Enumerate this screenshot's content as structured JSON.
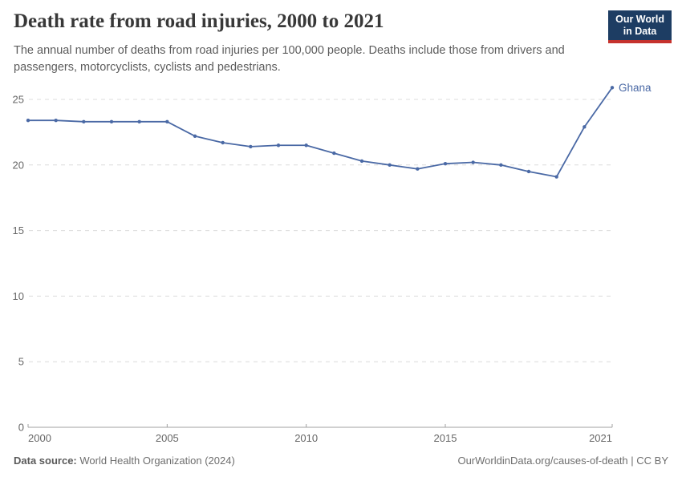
{
  "header": {
    "title": "Death rate from road injuries, 2000 to 2021",
    "subtitle": "The annual number of deaths from road injuries per 100,000 people. Deaths include those from drivers and passengers, motorcyclists, cyclists and pedestrians.",
    "logo": {
      "line1": "Our World",
      "line2": "in Data"
    }
  },
  "chart_data": {
    "type": "line",
    "title": "Death rate from road injuries, 2000 to 2021",
    "xlabel": "",
    "ylabel": "",
    "x": [
      2000,
      2001,
      2002,
      2003,
      2004,
      2005,
      2006,
      2007,
      2008,
      2009,
      2010,
      2011,
      2012,
      2013,
      2014,
      2015,
      2016,
      2017,
      2018,
      2019,
      2020,
      2021
    ],
    "series": [
      {
        "name": "Ghana",
        "color": "#4a69a5",
        "values": [
          23.4,
          23.4,
          23.3,
          23.3,
          23.3,
          23.3,
          22.2,
          21.7,
          21.4,
          21.5,
          21.5,
          20.9,
          20.3,
          20.0,
          19.7,
          20.1,
          20.2,
          20.0,
          19.5,
          19.1,
          22.9,
          25.9
        ]
      }
    ],
    "x_ticks": [
      2000,
      2005,
      2010,
      2015,
      2021
    ],
    "y_ticks": [
      0,
      5,
      10,
      15,
      20,
      25
    ],
    "xlim": [
      2000,
      2021
    ],
    "ylim": [
      0,
      26.5
    ],
    "grid": "dashed-horizontal",
    "legend": "end-of-line-label"
  },
  "footer": {
    "source_label": "Data source:",
    "source_value": "World Health Organization (2024)",
    "credit": "OurWorldinData.org/causes-of-death | CC BY"
  },
  "colors": {
    "line": "#4a69a5",
    "grid": "#dcdcdc",
    "axis": "#a1a1a1",
    "tick_text": "#666666",
    "logo_bg": "#1d3d63",
    "logo_stripe": "#c5322d"
  }
}
